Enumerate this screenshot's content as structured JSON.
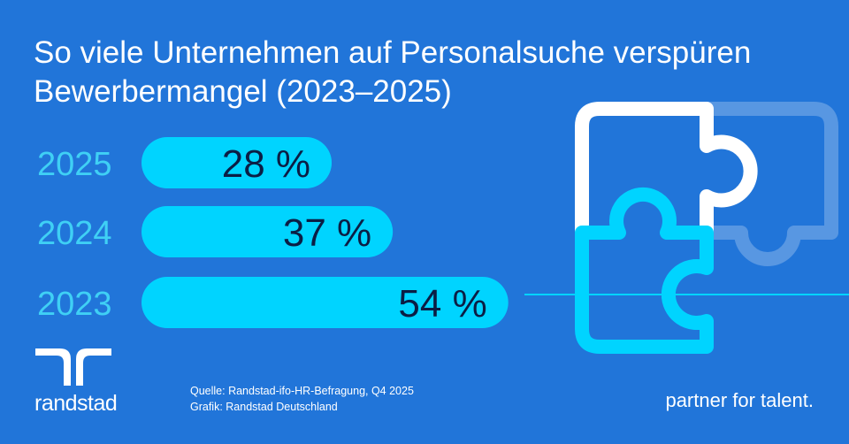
{
  "title_lines": [
    "So viele Unternehmen auf Personalsuche verspüren",
    "Bewerbermangel (2023–2025)"
  ],
  "chart_data": {
    "type": "bar",
    "orientation": "horizontal",
    "categories": [
      "2025",
      "2024",
      "2023"
    ],
    "values": [
      28,
      37,
      54
    ],
    "value_labels": [
      "28 %",
      "37 %",
      "54 %"
    ],
    "unit": "%",
    "bar_color": "#00d4ff",
    "label_color": "#0b1e45"
  },
  "footer": {
    "source": "Quelle: Randstad-ifo-HR-Befragung, Q4 2025",
    "graphic": "Grafik: Randstad Deutschland",
    "tagline": "partner for talent."
  },
  "logo": {
    "text": "randstad"
  },
  "colors": {
    "background": "#2175d9",
    "accent": "#00d4ff",
    "white": "#ffffff"
  }
}
